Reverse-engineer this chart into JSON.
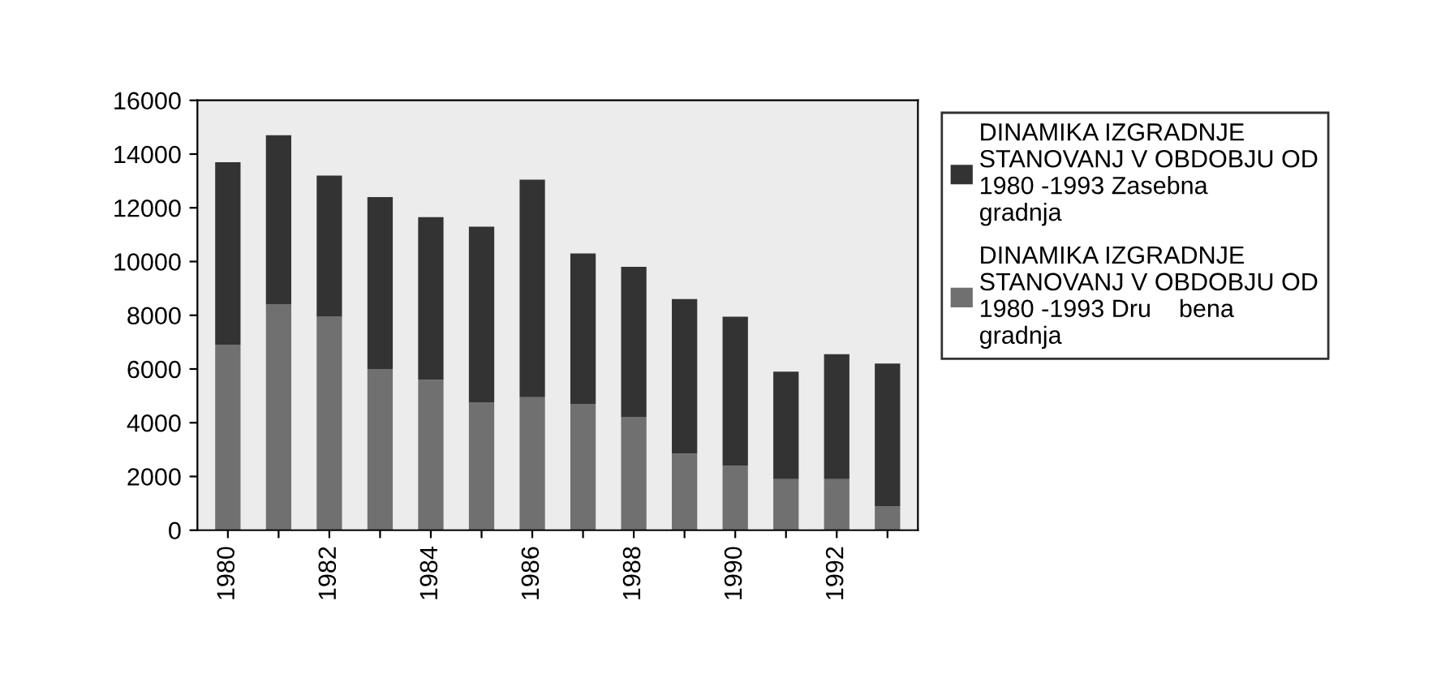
{
  "chart_data": {
    "type": "bar",
    "stacked": true,
    "categories": [
      "1980",
      null,
      "1982",
      null,
      "1984",
      null,
      "1986",
      null,
      "1988",
      null,
      "1990",
      null,
      "1992",
      null
    ],
    "series": [
      {
        "name": "DINAMIKA IZGRADNJE STANOVANJ V OBDOBJU OD 1980 -1993 Dru    bena gradnja",
        "color": "#707070",
        "values": [
          6900,
          8400,
          7950,
          6000,
          5600,
          4750,
          4950,
          4700,
          4200,
          2850,
          2400,
          1900,
          1900,
          900
        ]
      },
      {
        "name": "DINAMIKA IZGRADNJE STANOVANJ V OBDOBJU OD 1980 -1993 Zasebna gradnja",
        "color": "#333333",
        "values": [
          6800,
          6300,
          5250,
          6400,
          6050,
          6550,
          8100,
          5600,
          5600,
          5750,
          5550,
          4000,
          4650,
          5300
        ]
      }
    ],
    "ylim": [
      0,
      16000
    ],
    "yticks": [
      0,
      2000,
      4000,
      6000,
      8000,
      10000,
      12000,
      14000,
      16000
    ],
    "grid": false,
    "legend": "right"
  }
}
